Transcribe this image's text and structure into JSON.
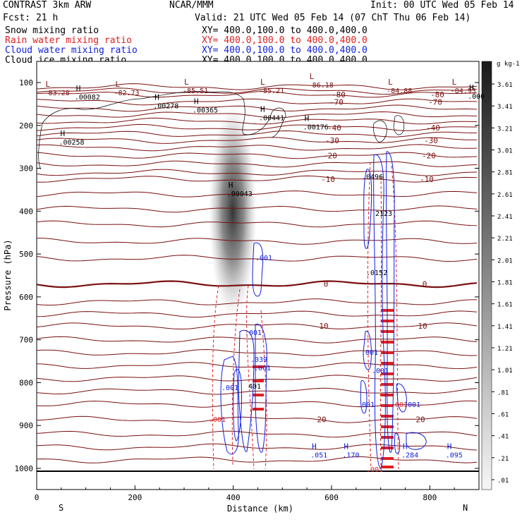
{
  "header": {
    "title": "CONTRAST  3km ARW",
    "center": "NCAR/MMM",
    "init": "Init: 00 UTC Wed 05 Feb 14",
    "fcst": "Fcst:    21 h",
    "valid": "Valid: 21 UTC Wed 05 Feb 14 (07 ChT Thu 06 Feb 14)"
  },
  "fields": [
    {
      "name": "Snow mixing ratio",
      "xy": "XY= 400.0,100.0 to 400.0,400.0",
      "color": "#000000"
    },
    {
      "name": "Rain water mixing ratio",
      "xy": "XY= 400.0,100.0 to 400.0,400.0",
      "color": "#e02020"
    },
    {
      "name": "Cloud water mixing ratio",
      "xy": "XY= 400.0,100.0 to 400.0,400.0",
      "color": "#1020e0"
    },
    {
      "name": "Cloud ice mixing ratio",
      "xy": "XY= 400.0,100.0 to 400.0,400.0",
      "color": "#000000"
    }
  ],
  "chart_data": {
    "type": "cross-section contour",
    "xlabel": "Distance (km)",
    "ylabel": "Pressure (hPa)",
    "xlim": [
      0,
      900
    ],
    "ylim": [
      1000,
      50
    ],
    "x_ticks": [
      0,
      200,
      400,
      600,
      800
    ],
    "y_ticks": [
      100,
      200,
      300,
      400,
      500,
      600,
      700,
      800,
      900,
      1000
    ],
    "left_end": "S",
    "right_end": "N",
    "colorbar": {
      "unit": "g kg-1",
      "labels": [
        "3.61",
        "3.41",
        "3.21",
        "3.01",
        "2.81",
        "2.61",
        "2.41",
        "2.21",
        "2.01",
        "1.81",
        "1.61",
        "1.41",
        "1.21",
        "1.01",
        ".81",
        ".61",
        ".41",
        ".21",
        ".01"
      ]
    },
    "temperature_contours": [
      {
        "label": "-80",
        "pressure": 128
      },
      {
        "label": "-70",
        "pressure": 145
      },
      {
        "label": "-40",
        "pressure": 205
      },
      {
        "label": "-30",
        "pressure": 235
      },
      {
        "label": "-20",
        "pressure": 270
      },
      {
        "label": "-10",
        "pressure": 325
      },
      {
        "label": "0",
        "pressure": 570
      },
      {
        "label": "10",
        "pressure": 668
      },
      {
        "label": "20",
        "pressure": 886
      }
    ],
    "extrema_labels": [
      {
        "type": "L",
        "value": "-83.28",
        "x": 18,
        "p": 110
      },
      {
        "type": "H",
        "value": ".00082",
        "x": 80,
        "p": 120
      },
      {
        "type": "L",
        "value": "-82.73",
        "x": 160,
        "p": 110
      },
      {
        "type": "H",
        "value": ".00278",
        "x": 240,
        "p": 140
      },
      {
        "type": "L",
        "value": "-85.51",
        "x": 300,
        "p": 105
      },
      {
        "type": "H",
        "value": ".00365",
        "x": 320,
        "p": 150
      },
      {
        "type": "L",
        "value": "-85.21",
        "x": 455,
        "p": 105
      },
      {
        "type": "L",
        "value": "-86.18",
        "x": 555,
        "p": 92
      },
      {
        "type": "H",
        "value": ".00441",
        "x": 455,
        "p": 168
      },
      {
        "type": "H",
        "value": ".00176",
        "x": 545,
        "p": 190
      },
      {
        "type": "L",
        "value": "-84.88",
        "x": 715,
        "p": 105
      },
      {
        "type": "L",
        "value": "-84.93",
        "x": 845,
        "p": 105
      },
      {
        "type": "H",
        "value": ".000",
        "x": 880,
        "p": 118
      },
      {
        "type": "H",
        "value": ".00258",
        "x": 48,
        "p": 225
      },
      {
        "type": "H",
        "value": ".00043",
        "x": 390,
        "p": 345
      },
      {
        "type": "H",
        "value": ".051",
        "x": 560,
        "p": 955
      },
      {
        "type": "H",
        "value": ".170",
        "x": 625,
        "p": 955
      },
      {
        "type": "H",
        "value": ".284",
        "x": 745,
        "p": 955
      },
      {
        "type": "H",
        "value": ".095",
        "x": 835,
        "p": 955
      }
    ],
    "contour_labels": [
      ".001",
      ".039",
      ".001",
      ".001",
      ".001",
      ".001",
      ".001",
      ".001",
      ".001",
      ".001",
      ".001",
      ".001"
    ],
    "annotation_L": "L",
    "annotation_H": "H",
    "text_401": "401",
    "text_0496": ".0496",
    "text_2123": "2123",
    "text_0152": ".0152"
  }
}
